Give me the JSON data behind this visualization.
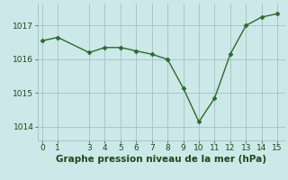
{
  "x": [
    0,
    1,
    3,
    4,
    5,
    6,
    7,
    8,
    9,
    10,
    11,
    12,
    13,
    14,
    15
  ],
  "y": [
    1016.55,
    1016.65,
    1016.2,
    1016.35,
    1016.35,
    1016.25,
    1016.15,
    1016.0,
    1015.15,
    1014.15,
    1014.85,
    1016.15,
    1017.0,
    1017.25,
    1017.35
  ],
  "line_color": "#2d6a2d",
  "marker": "D",
  "marker_size": 2.5,
  "line_width": 1.0,
  "background_color": "#cce8e8",
  "grid_color": "#a0c4c4",
  "xlabel": "Graphe pression niveau de la mer (hPa)",
  "xlabel_color": "#1a4a1a",
  "xlabel_fontsize": 7.5,
  "ylim": [
    1013.6,
    1017.65
  ],
  "yticks": [
    1014,
    1015,
    1016,
    1017
  ],
  "xlim": [
    -0.3,
    15.5
  ],
  "xticks": [
    0,
    1,
    3,
    4,
    5,
    6,
    7,
    8,
    9,
    10,
    11,
    12,
    13,
    14,
    15
  ],
  "tick_color": "#1a4a1a",
  "tick_fontsize": 6.5
}
